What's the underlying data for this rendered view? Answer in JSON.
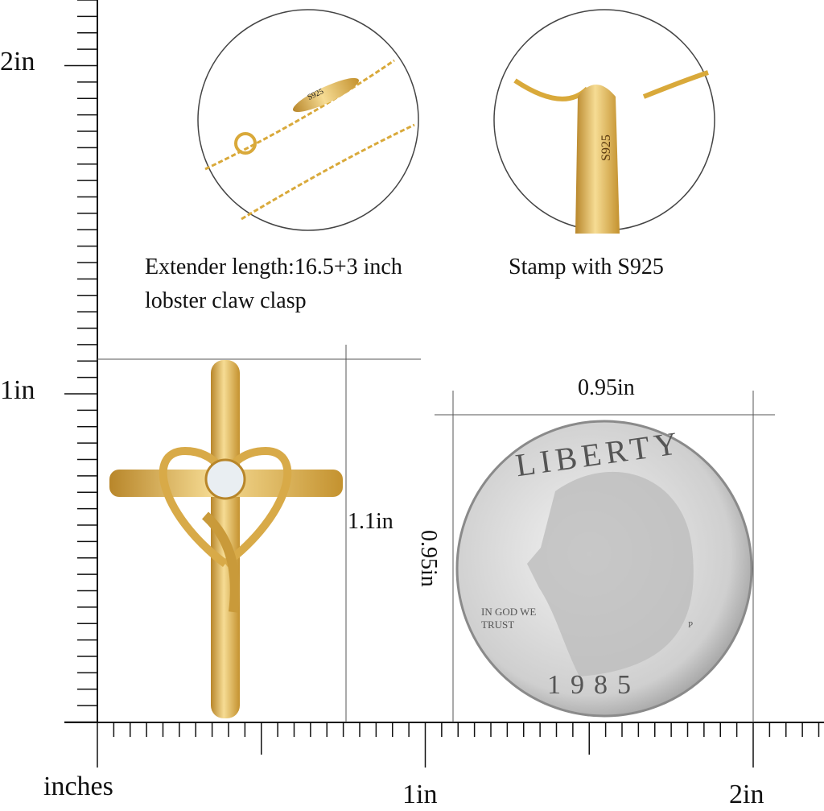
{
  "ruler": {
    "unit_label": "inches",
    "vertical_labels": [
      "2in",
      "1in"
    ],
    "horizontal_labels": [
      "1in",
      "2in"
    ]
  },
  "details": {
    "chain_caption_line1": "Extender length:16.5+3 inch",
    "chain_caption_line2": "lobster claw clasp",
    "bail_caption": "Stamp with S925",
    "chain_stamp": "S925",
    "bail_stamp": "S925"
  },
  "dimensions": {
    "pendant_height": "1.1in",
    "coin_width": "0.95in",
    "coin_height": "0.95in"
  },
  "coin": {
    "top_text": "LIBERTY",
    "motto": "IN GOD WE TRUST",
    "year": "1985",
    "mint_mark": "P"
  },
  "colors": {
    "gold": "#e0b454",
    "gold_dark": "#b8862a",
    "silver": "#d9d9d9"
  }
}
